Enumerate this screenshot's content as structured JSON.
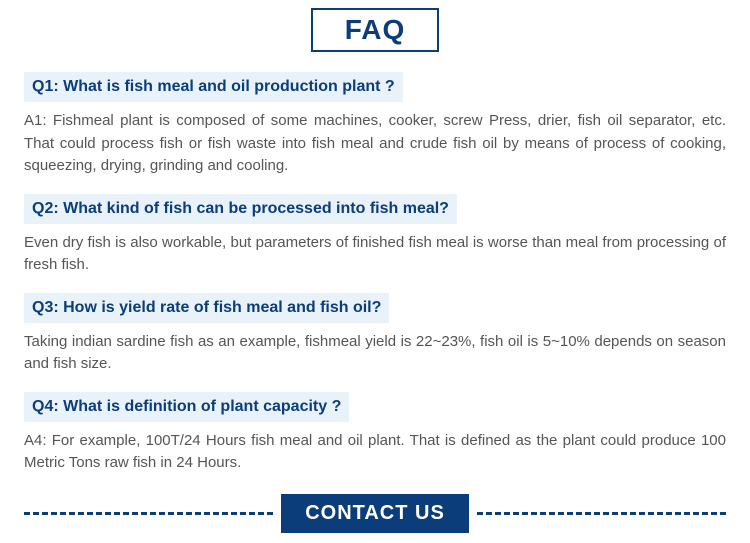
{
  "header": {
    "title": "FAQ",
    "border_color": "#0a3d7a",
    "text_color": "#0a3d7a"
  },
  "faq": [
    {
      "q": "Q1: What is fish meal and oil production plant ?",
      "a": "A1: Fishmeal plant is composed of some machines, cooker, screw Press, drier, fish oil separator, etc. That could process fish or fish waste into fish meal and crude fish oil by means of process of cooking, squeezing, drying, grinding and cooling."
    },
    {
      "q": "Q2: What kind of fish can be processed into fish meal?",
      "a": "Even dry fish is also workable, but parameters of finished fish meal is worse than meal from processing of fresh fish."
    },
    {
      "q": "Q3: How is yield rate of fish meal and fish oil?",
      "a": "Taking indian sardine fish as an example, fishmeal yield is 22~23%, fish oil is 5~10% depends on season and fish size."
    },
    {
      "q": "Q4: What is definition of plant capacity ?",
      "a": "A4: For example, 100T/24 Hours fish meal and oil plant. That is defined as the plant could produce 100 Metric Tons raw fish in 24 Hours."
    }
  ],
  "contact": {
    "label": "CONTACT US",
    "bg_color": "#0a3d7a",
    "dash_color": "#0a3d7a"
  },
  "styles": {
    "question_bg": "#eaf2f9",
    "question_color": "#0a3d7a",
    "answer_color": "#555555"
  }
}
